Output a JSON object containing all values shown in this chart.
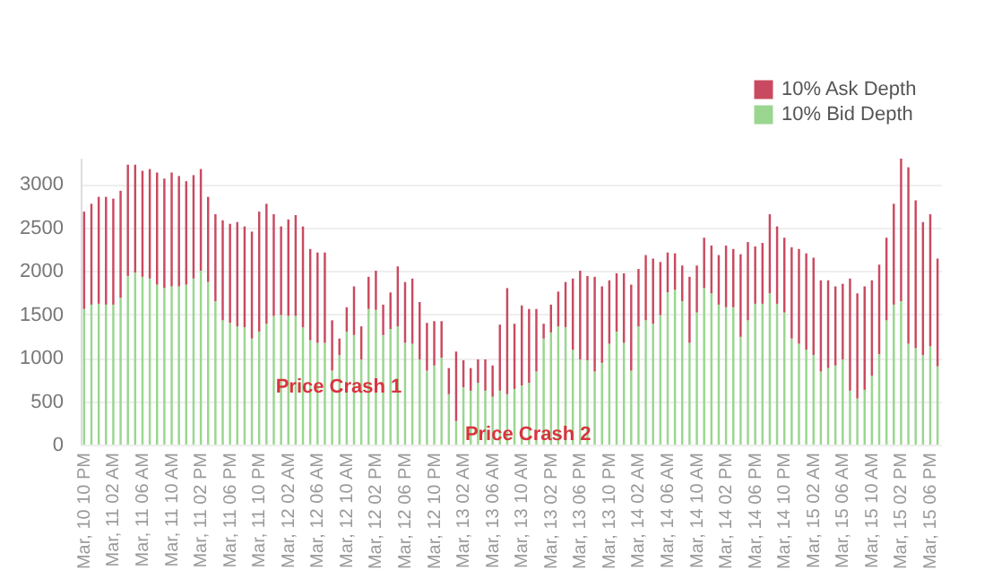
{
  "chart_data": {
    "type": "bar",
    "stacked": true,
    "categories": [
      "Mar, 10 10 PM",
      null,
      null,
      null,
      "Mar, 11 02 AM",
      null,
      null,
      null,
      "Mar, 11 06 AM",
      null,
      null,
      null,
      "Mar, 11 10 AM",
      null,
      null,
      null,
      "Mar, 11 02 PM",
      null,
      null,
      null,
      "Mar, 11 06 PM",
      null,
      null,
      null,
      "Mar, 11 10 PM",
      null,
      null,
      null,
      "Mar, 12 02 AM",
      null,
      null,
      null,
      "Mar, 12 06 AM",
      null,
      null,
      null,
      "Mar, 12 10 AM",
      null,
      null,
      null,
      "Mar, 12 02 PM",
      null,
      null,
      null,
      "Mar, 12 06 PM",
      null,
      null,
      null,
      "Mar, 12 10 PM",
      null,
      null,
      null,
      "Mar, 13 02 AM",
      null,
      null,
      null,
      "Mar, 13 06 AM",
      null,
      null,
      null,
      "Mar, 13 10 AM",
      null,
      null,
      null,
      "Mar, 13 02 PM",
      null,
      null,
      null,
      "Mar, 13 06 PM",
      null,
      null,
      null,
      "Mar, 13 10 PM",
      null,
      null,
      null,
      "Mar, 14 02 AM",
      null,
      null,
      null,
      "Mar, 14 06 AM",
      null,
      null,
      null,
      "Mar, 14 10 AM",
      null,
      null,
      null,
      "Mar, 14 02 PM",
      null,
      null,
      null,
      "Mar, 14 06 PM",
      null,
      null,
      null,
      "Mar, 14 10 PM",
      null,
      null,
      null,
      "Mar, 15 02 AM",
      null,
      null,
      null,
      "Mar, 15 06 AM",
      null,
      null,
      null,
      "Mar, 15 10 AM",
      null,
      null,
      null,
      "Mar, 15 02 PM",
      null,
      null,
      null,
      "Mar, 15 06 PM",
      null
    ],
    "series": [
      {
        "name": "10% Bid Depth",
        "color": "#9ad68f",
        "values": [
          1560,
          1610,
          1620,
          1610,
          1610,
          1690,
          1940,
          1980,
          1930,
          1910,
          1840,
          1800,
          1820,
          1820,
          1840,
          1910,
          2000,
          1870,
          1650,
          1430,
          1400,
          1360,
          1350,
          1220,
          1300,
          1390,
          1480,
          1490,
          1480,
          1480,
          1350,
          1200,
          1170,
          1170,
          850,
          1030,
          1300,
          1260,
          980,
          1560,
          1550,
          1260,
          1330,
          1360,
          1170,
          1160,
          980,
          850,
          910,
          1000,
          580,
          270,
          660,
          620,
          710,
          620,
          550,
          620,
          580,
          640,
          680,
          710,
          840,
          1220,
          1290,
          1360,
          1350,
          1090,
          980,
          970,
          840,
          940,
          1160,
          1300,
          1170,
          850,
          1360,
          1430,
          1390,
          1490,
          1750,
          1780,
          1650,
          1170,
          1520,
          1800,
          1740,
          1610,
          1580,
          1580,
          1240,
          1430,
          1620,
          1620,
          1740,
          1620,
          1520,
          1220,
          1160,
          1090,
          1030,
          840,
          880,
          910,
          980,
          620,
          530,
          630,
          790,
          1040,
          1430,
          1610,
          1650,
          1160,
          1110,
          1030,
          1130,
          900
        ]
      },
      {
        "name": "10% Ask Depth",
        "color": "#c94a60",
        "values": [
          1120,
          1160,
          1230,
          1240,
          1220,
          1230,
          1280,
          1240,
          1220,
          1260,
          1290,
          1260,
          1310,
          1270,
          1190,
          1190,
          1170,
          980,
          1000,
          1150,
          1140,
          1200,
          1160,
          1230,
          1380,
          1380,
          1170,
          1020,
          1110,
          1160,
          1160,
          1050,
          1040,
          1040,
          580,
          190,
          280,
          560,
          380,
          370,
          450,
          350,
          420,
          690,
          700,
          750,
          660,
          550,
          510,
          420,
          300,
          800,
          310,
          260,
          270,
          360,
          360,
          760,
          1220,
          750,
          920,
          850,
          720,
          170,
          320,
          400,
          520,
          820,
          1020,
          970,
          1090,
          880,
          730,
          670,
          800,
          990,
          660,
          750,
          750,
          610,
          460,
          420,
          410,
          760,
          540,
          580,
          550,
          570,
          710,
          670,
          950,
          900,
          660,
          700,
          910,
          890,
          860,
          1050,
          1090,
          1110,
          1120,
          1050,
          1010,
          910,
          870,
          1290,
          1210,
          1190,
          1100,
          1030,
          950,
          1160,
          1640,
          2030,
          1700,
          1530,
          1520,
          1240
        ]
      }
    ],
    "ylim": [
      0,
      3300
    ],
    "yticks": [
      0,
      500,
      1000,
      1500,
      2000,
      2500,
      3000
    ],
    "grid": "y",
    "legend": "top right",
    "annotations": [
      "Price Crash 1",
      "Price Crash 2"
    ]
  }
}
